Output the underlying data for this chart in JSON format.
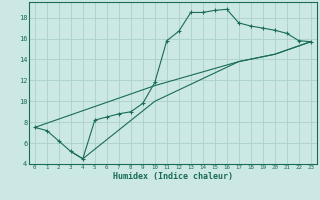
{
  "xlabel": "Humidex (Indice chaleur)",
  "bg_color": "#cce8e5",
  "line_color": "#1a6b5a",
  "grid_color": "#aacfcc",
  "xlim": [
    -0.5,
    23.5
  ],
  "ylim": [
    4,
    19.5
  ],
  "xticks": [
    0,
    1,
    2,
    3,
    4,
    5,
    6,
    7,
    8,
    9,
    10,
    11,
    12,
    13,
    14,
    15,
    16,
    17,
    18,
    19,
    20,
    21,
    22,
    23
  ],
  "yticks": [
    4,
    6,
    8,
    10,
    12,
    14,
    16,
    18
  ],
  "line1_x": [
    0,
    1,
    2,
    3,
    4,
    5,
    6,
    7,
    8,
    9,
    10,
    11,
    12,
    13,
    14,
    15,
    16,
    17,
    18,
    19,
    20,
    21,
    22,
    23
  ],
  "line1_y": [
    7.5,
    7.2,
    6.2,
    5.2,
    4.5,
    8.2,
    8.5,
    8.8,
    9.0,
    9.8,
    11.8,
    15.8,
    16.7,
    18.5,
    18.5,
    18.7,
    18.8,
    17.5,
    17.2,
    17.0,
    16.8,
    16.5,
    15.8,
    15.7
  ],
  "line2_x": [
    0,
    10,
    17,
    20,
    23
  ],
  "line2_y": [
    7.5,
    11.5,
    13.8,
    14.5,
    15.7
  ],
  "line3_x": [
    3,
    4,
    10,
    17,
    20,
    23
  ],
  "line3_y": [
    5.2,
    4.5,
    10.0,
    13.8,
    14.5,
    15.7
  ]
}
